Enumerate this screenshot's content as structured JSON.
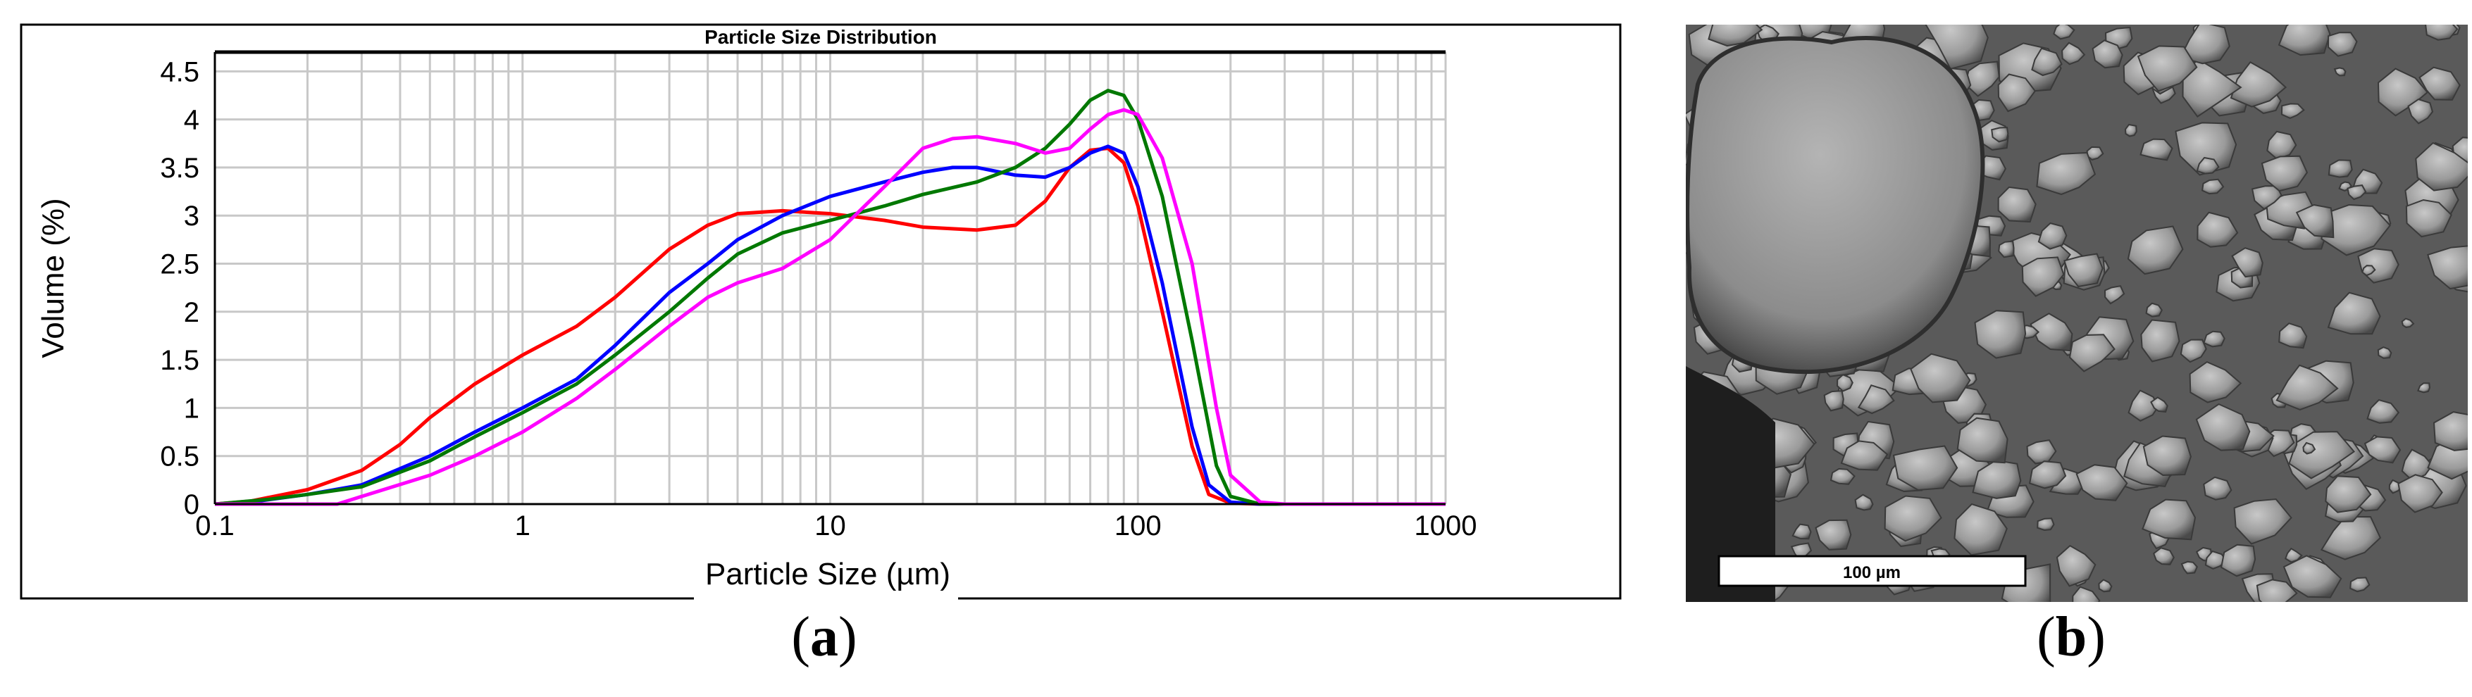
{
  "panels": {
    "a": {
      "open": "(",
      "letter": "a",
      "close": ")"
    },
    "b": {
      "open": "(",
      "letter": "b",
      "close": ")"
    }
  },
  "chart_data": {
    "type": "line",
    "title": "Particle Size Distribution",
    "xlabel": "Particle Size (µm)",
    "ylabel": "Volume (%)",
    "xscale": "log",
    "xlim": [
      0.1,
      1000
    ],
    "ylim": [
      0,
      4.7
    ],
    "xticks": [
      0.1,
      1,
      10,
      100,
      1000
    ],
    "xtick_labels": [
      "0.1",
      "1",
      "10",
      "100",
      "1000"
    ],
    "yticks": [
      0,
      0.5,
      1,
      1.5,
      2,
      2.5,
      3,
      3.5,
      4,
      4.5
    ],
    "ytick_labels": [
      "0",
      "0.5",
      "1",
      "1.5",
      "2",
      "2.5",
      "3",
      "3.5",
      "4",
      "4.5"
    ],
    "grid": true,
    "legend": "none",
    "series": [
      {
        "name": "red",
        "color": "#ff0000",
        "x": [
          0.1,
          0.13,
          0.2,
          0.3,
          0.4,
          0.5,
          0.7,
          1,
          1.5,
          2,
          3,
          4,
          5,
          7,
          10,
          15,
          20,
          30,
          40,
          50,
          60,
          70,
          80,
          90,
          100,
          120,
          150,
          170,
          200,
          250,
          1000
        ],
        "y": [
          0,
          0.03,
          0.15,
          0.35,
          0.62,
          0.9,
          1.25,
          1.55,
          1.85,
          2.15,
          2.65,
          2.9,
          3.02,
          3.05,
          3.02,
          2.95,
          2.88,
          2.85,
          2.9,
          3.15,
          3.5,
          3.68,
          3.7,
          3.55,
          3.1,
          2.0,
          0.6,
          0.1,
          0.01,
          0,
          0
        ]
      },
      {
        "name": "blue",
        "color": "#0000ff",
        "x": [
          0.1,
          0.13,
          0.2,
          0.3,
          0.5,
          0.7,
          1,
          1.5,
          2,
          3,
          4,
          5,
          7,
          10,
          15,
          20,
          25,
          30,
          40,
          50,
          60,
          70,
          80,
          90,
          100,
          120,
          150,
          170,
          200,
          250,
          1000
        ],
        "y": [
          0,
          0.02,
          0.1,
          0.2,
          0.5,
          0.75,
          1.0,
          1.3,
          1.65,
          2.2,
          2.5,
          2.75,
          3.0,
          3.2,
          3.35,
          3.45,
          3.5,
          3.5,
          3.42,
          3.4,
          3.5,
          3.65,
          3.72,
          3.65,
          3.3,
          2.3,
          0.8,
          0.2,
          0.02,
          0,
          0
        ]
      },
      {
        "name": "green",
        "color": "#007800",
        "x": [
          0.1,
          0.15,
          0.2,
          0.3,
          0.5,
          0.7,
          1,
          1.5,
          2,
          3,
          4,
          5,
          7,
          10,
          15,
          20,
          30,
          40,
          50,
          60,
          70,
          80,
          90,
          100,
          120,
          150,
          180,
          200,
          250,
          1000
        ],
        "y": [
          0,
          0.05,
          0.1,
          0.18,
          0.45,
          0.7,
          0.95,
          1.25,
          1.55,
          2.0,
          2.35,
          2.6,
          2.82,
          2.95,
          3.1,
          3.22,
          3.35,
          3.5,
          3.7,
          3.95,
          4.2,
          4.3,
          4.25,
          4.0,
          3.2,
          1.7,
          0.4,
          0.08,
          0,
          0
        ]
      },
      {
        "name": "magenta",
        "color": "#ff00ff",
        "x": [
          0.1,
          0.25,
          0.3,
          0.5,
          0.7,
          1,
          1.5,
          2,
          3,
          4,
          5,
          7,
          10,
          15,
          20,
          25,
          30,
          40,
          50,
          60,
          70,
          80,
          90,
          100,
          120,
          150,
          180,
          200,
          250,
          300,
          1000
        ],
        "y": [
          0,
          0,
          0.08,
          0.3,
          0.5,
          0.75,
          1.1,
          1.4,
          1.85,
          2.15,
          2.3,
          2.45,
          2.75,
          3.3,
          3.7,
          3.8,
          3.82,
          3.75,
          3.65,
          3.7,
          3.9,
          4.05,
          4.1,
          4.05,
          3.6,
          2.5,
          1.0,
          0.3,
          0.02,
          0,
          0
        ]
      }
    ]
  },
  "sem": {
    "scale_bar_label": "100 µm"
  }
}
